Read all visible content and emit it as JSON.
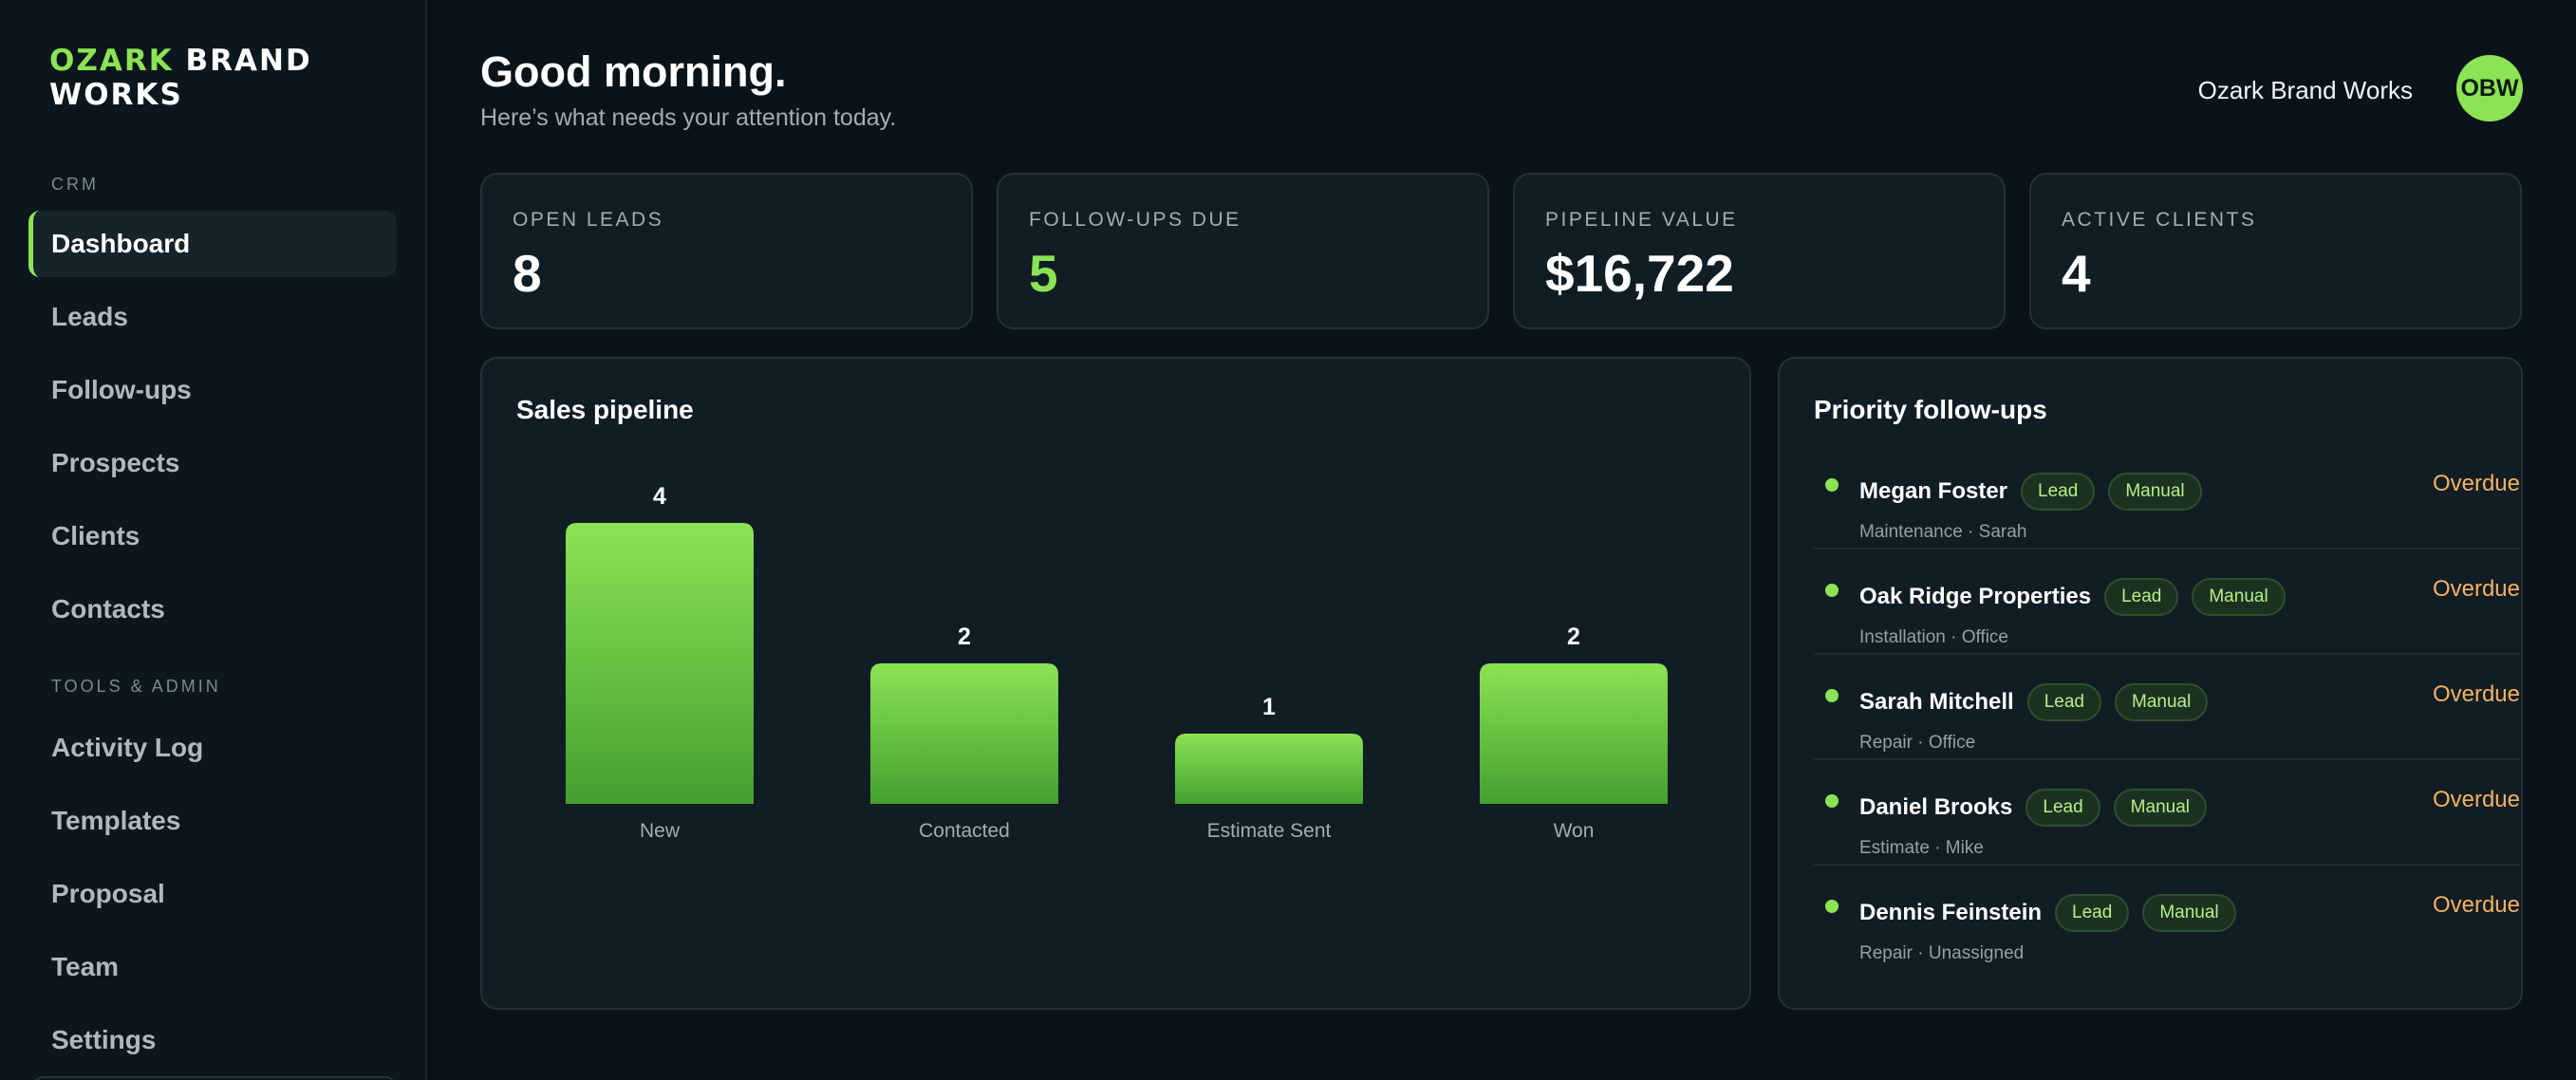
{
  "brand": {
    "accent": "OZARK",
    "rest_line1": "BRAND",
    "line2": "WORKS"
  },
  "sidebar": {
    "sections": [
      {
        "label": "CRM"
      },
      {
        "label": "TOOLS & ADMIN"
      }
    ],
    "items": [
      {
        "label": "Dashboard",
        "active": true
      },
      {
        "label": "Leads"
      },
      {
        "label": "Follow-ups"
      },
      {
        "label": "Prospects"
      },
      {
        "label": "Clients"
      },
      {
        "label": "Contacts"
      },
      {
        "label": "Activity Log"
      },
      {
        "label": "Templates"
      },
      {
        "label": "Proposal"
      },
      {
        "label": "Team"
      },
      {
        "label": "Settings"
      }
    ]
  },
  "header": {
    "greeting": "Good morning.",
    "subtitle": "Here’s what needs your attention today.",
    "user_name": "Ozark Brand Works",
    "avatar_initials": "OBW"
  },
  "stats": [
    {
      "label": "OPEN LEADS",
      "value": "8"
    },
    {
      "label": "FOLLOW-UPS DUE",
      "value": "5"
    },
    {
      "label": "PIPELINE VALUE",
      "value": "$16,722"
    },
    {
      "label": "ACTIVE CLIENTS",
      "value": "4"
    }
  ],
  "pipeline": {
    "title": "Sales pipeline"
  },
  "chart_data": {
    "type": "bar",
    "title": "Sales pipeline",
    "categories": [
      "New",
      "Contacted",
      "Estimate Sent",
      "Won"
    ],
    "values": [
      4,
      2,
      1,
      2
    ],
    "xlabel": "",
    "ylabel": "",
    "grid": false,
    "bar_color": "#8ce354"
  },
  "followups": {
    "title": "Priority follow-ups",
    "items": [
      {
        "name": "Megan Foster",
        "tags": [
          "Lead",
          "Manual"
        ],
        "detail": "Maintenance · Sarah",
        "status": "Overdue"
      },
      {
        "name": "Oak Ridge Properties",
        "tags": [
          "Lead",
          "Manual"
        ],
        "detail": "Installation · Office",
        "status": "Overdue"
      },
      {
        "name": "Sarah Mitchell",
        "tags": [
          "Lead",
          "Manual"
        ],
        "detail": "Repair · Office",
        "status": "Overdue"
      },
      {
        "name": "Daniel Brooks",
        "tags": [
          "Lead",
          "Manual"
        ],
        "detail": "Estimate · Mike",
        "status": "Overdue"
      },
      {
        "name": "Dennis Feinstein",
        "tags": [
          "Lead",
          "Manual"
        ],
        "detail": "Repair · Unassigned",
        "status": "Overdue"
      }
    ]
  },
  "colors": {
    "accent": "#8ce354",
    "overdue": "#f2b263",
    "background": "#0a131a",
    "card": "#111d24"
  }
}
